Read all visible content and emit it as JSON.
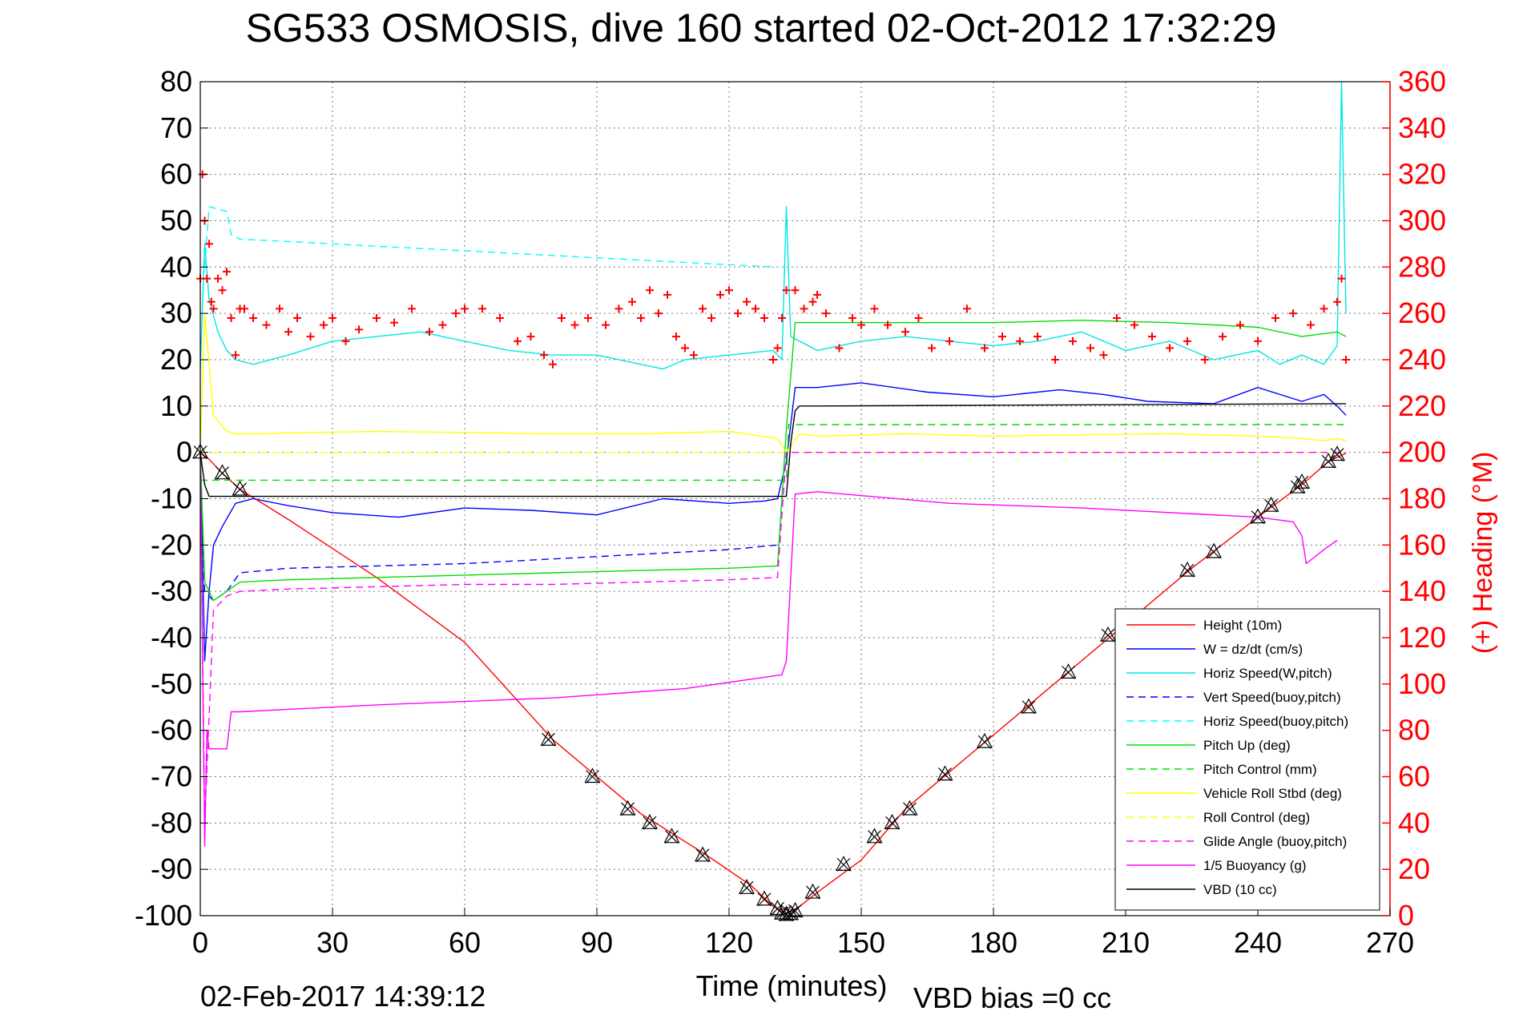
{
  "chart_data": {
    "type": "line",
    "title": "SG533 OSMOSIS, dive 160 started 02-Oct-2012 17:32:29",
    "xlabel": "Time (minutes)",
    "ylabel": "",
    "y2label": "(+) Heading (°M)",
    "footer_left": "02-Feb-2017 14:39:12",
    "footer_right": "VBD bias =0 cc",
    "xlim": [
      0,
      270
    ],
    "ylim": [
      -100,
      80
    ],
    "y2lim": [
      0,
      360
    ],
    "xticks": [
      0,
      30,
      60,
      90,
      120,
      150,
      180,
      210,
      240,
      270
    ],
    "yticks": [
      80,
      70,
      60,
      50,
      40,
      30,
      20,
      10,
      0,
      -10,
      -20,
      -30,
      -40,
      -50,
      -60,
      -70,
      -80,
      -90,
      -100
    ],
    "y2ticks": [
      360,
      340,
      320,
      300,
      280,
      260,
      240,
      220,
      200,
      180,
      160,
      140,
      120,
      100,
      80,
      60,
      40,
      20,
      0
    ],
    "grid": true,
    "legend_position": "bottom-right",
    "colors": {
      "height": "#ff0000",
      "w": "#0000ff",
      "horiz_speed": "#00e5e5",
      "vert_speed_buoy": "#0000ff",
      "horiz_speed_buoy": "#00ffff",
      "pitch_up": "#00dd00",
      "pitch_control": "#00dd00",
      "roll": "#ffff00",
      "roll_control": "#ffff00",
      "glide_angle": "#ff00ff",
      "buoyancy": "#ff00ff",
      "vbd": "#000000",
      "heading": "#ff0000",
      "right_axis": "#ff0000"
    },
    "legend": [
      {
        "label": "Height (10m)",
        "color": "#ff0000",
        "dash": "solid"
      },
      {
        "label": "W = dz/dt (cm/s)",
        "color": "#0000ff",
        "dash": "solid"
      },
      {
        "label": "Horiz Speed(W,pitch)",
        "color": "#00e5e5",
        "dash": "solid"
      },
      {
        "label": "Vert Speed(buoy,pitch)",
        "color": "#0000ff",
        "dash": "dashed"
      },
      {
        "label": "Horiz Speed(buoy,pitch)",
        "color": "#00ffff",
        "dash": "dashed"
      },
      {
        "label": "Pitch Up (deg)",
        "color": "#00dd00",
        "dash": "solid"
      },
      {
        "label": "Pitch Control (mm)",
        "color": "#00dd00",
        "dash": "dashed"
      },
      {
        "label": "Vehicle Roll Stbd (deg)",
        "color": "#ffff00",
        "dash": "solid"
      },
      {
        "label": "Roll Control (deg)",
        "color": "#ffff00",
        "dash": "dashed"
      },
      {
        "label": "Glide Angle (buoy,pitch)",
        "color": "#ff00ff",
        "dash": "dashed"
      },
      {
        "label": "1/5 Buoyancy (g)",
        "color": "#ff00ff",
        "dash": "solid"
      },
      {
        "label": "VBD (10 cc)",
        "color": "#000000",
        "dash": "solid"
      }
    ],
    "series": [
      {
        "key": "height",
        "axis": "left",
        "dash": "solid",
        "x": [
          0,
          2,
          5,
          9,
          20,
          40,
          60,
          80,
          90,
          100,
          115,
          125,
          130,
          133,
          136,
          140,
          150,
          160,
          170,
          180,
          190,
          200,
          210,
          225,
          240,
          250,
          256,
          260
        ],
        "y": [
          0,
          -1.5,
          -4.5,
          -8,
          -14.5,
          -27,
          -41,
          -62,
          -70,
          -78,
          -87,
          -93.5,
          -98,
          -99.7,
          -98,
          -95,
          -88,
          -77,
          -69,
          -61,
          -53,
          -45,
          -37,
          -25,
          -14,
          -7,
          -2,
          -0.2
        ]
      },
      {
        "key": "w",
        "axis": "left",
        "dash": "solid",
        "x": [
          0,
          1,
          2,
          3,
          5,
          8,
          12,
          20,
          30,
          45,
          60,
          75,
          90,
          105,
          120,
          128,
          131,
          133,
          135,
          140,
          150,
          165,
          180,
          195,
          205,
          215,
          230,
          240,
          250,
          255,
          258,
          260
        ],
        "y": [
          0,
          -45,
          -30,
          -20,
          -16,
          -11,
          -10,
          -11.5,
          -13,
          -14,
          -12,
          -12.5,
          -13.5,
          -10,
          -11,
          -10.5,
          -10,
          -2,
          14,
          14,
          15,
          13,
          12,
          13.5,
          12.5,
          11,
          10.5,
          14,
          11,
          12.5,
          10,
          8
        ]
      },
      {
        "key": "horiz_speed",
        "axis": "left",
        "dash": "solid",
        "x": [
          0,
          1,
          2,
          4,
          6,
          8,
          12,
          20,
          30,
          40,
          50,
          60,
          70,
          80,
          90,
          100,
          105,
          110,
          120,
          130,
          132,
          133,
          134,
          136,
          140,
          150,
          160,
          170,
          180,
          190,
          200,
          210,
          220,
          230,
          240,
          245,
          250,
          255,
          258,
          259,
          260
        ],
        "y": [
          18,
          45,
          33,
          26,
          22,
          20,
          19,
          21,
          24,
          25,
          26,
          24,
          22,
          21,
          21,
          19,
          18,
          20,
          21,
          22,
          20,
          53,
          25,
          24,
          22,
          24,
          25,
          24,
          23,
          24,
          26,
          22,
          24,
          20,
          22,
          19,
          21,
          19,
          23,
          80,
          30
        ]
      },
      {
        "key": "vert_speed_buoy",
        "axis": "left",
        "dash": "dashed",
        "x": [
          0,
          1,
          3,
          6,
          9,
          20,
          40,
          60,
          80,
          100,
          120,
          131
        ],
        "y": [
          0,
          -30,
          -32,
          -30,
          -26,
          -25,
          -24.5,
          -24,
          -23,
          -22,
          -21,
          -20
        ]
      },
      {
        "key": "horiz_speed_buoy",
        "axis": "left",
        "dash": "dashed",
        "x": [
          1,
          2,
          6,
          7,
          9,
          20,
          40,
          60,
          80,
          100,
          120,
          131
        ],
        "y": [
          40,
          53,
          52,
          47,
          46,
          45.5,
          44.5,
          43.5,
          42.5,
          41.5,
          40.5,
          40
        ]
      },
      {
        "key": "pitch_up",
        "axis": "left",
        "dash": "solid",
        "x": [
          0,
          1,
          3,
          6,
          9,
          20,
          40,
          60,
          80,
          100,
          120,
          131,
          133,
          135,
          140,
          160,
          180,
          200,
          220,
          240,
          250,
          258,
          260
        ],
        "y": [
          0,
          -28,
          -32,
          -30,
          -28,
          -27.5,
          -27,
          -26.5,
          -26,
          -25.5,
          -25,
          -24.5,
          5,
          28,
          28,
          28,
          28,
          28.5,
          28,
          27,
          25,
          26,
          25
        ]
      },
      {
        "key": "pitch_control",
        "axis": "left",
        "dash": "dashed",
        "x": [
          0,
          2,
          133,
          133.5,
          260
        ],
        "y": [
          -6,
          -6,
          -6,
          6,
          6
        ]
      },
      {
        "key": "roll",
        "axis": "left",
        "dash": "solid",
        "x": [
          0,
          1,
          3,
          6,
          8,
          12,
          20,
          40,
          60,
          80,
          100,
          120,
          131,
          133,
          136,
          140,
          160,
          180,
          200,
          220,
          240,
          250,
          255,
          258,
          260
        ],
        "y": [
          0,
          30,
          8,
          4.5,
          4,
          4,
          4.2,
          4.5,
          4.3,
          4,
          4,
          4.5,
          3,
          0,
          4,
          3.5,
          4,
          3.5,
          3.8,
          4,
          3.5,
          3,
          2.5,
          3,
          2.5
        ]
      },
      {
        "key": "roll_control",
        "axis": "left",
        "dash": "dashed",
        "x": [
          0,
          260
        ],
        "y": [
          0,
          0
        ]
      },
      {
        "key": "glide_angle",
        "axis": "left",
        "dash": "dashed",
        "x": [
          0,
          1,
          3,
          6,
          9,
          20,
          40,
          60,
          80,
          100,
          120,
          131,
          133,
          135,
          260
        ],
        "y": [
          0,
          -80,
          -34,
          -31,
          -30,
          -29.5,
          -29,
          -28.5,
          -28.5,
          -28,
          -27.5,
          -27,
          0,
          0,
          0
        ]
      },
      {
        "key": "buoyancy",
        "axis": "left",
        "dash": "solid",
        "x": [
          0,
          1,
          1.5,
          2,
          3,
          6,
          7,
          9,
          40,
          80,
          110,
          132,
          133,
          135,
          140,
          170,
          200,
          240,
          248,
          250,
          251,
          255,
          258
        ],
        "y": [
          0,
          -85,
          -60,
          -64,
          -64,
          -64,
          -56,
          -56,
          -54.5,
          -53,
          -51,
          -48,
          -45,
          -9,
          -8.5,
          -11,
          -12,
          -14,
          -15,
          -18,
          -24,
          -21,
          -19
        ]
      },
      {
        "key": "vbd",
        "axis": "left",
        "dash": "solid",
        "x": [
          0,
          1,
          2,
          133,
          134,
          135,
          136,
          140,
          260
        ],
        "y": [
          0,
          -7,
          -9.5,
          -9.5,
          2,
          9,
          10,
          10,
          10.5
        ]
      },
      {
        "key": "heading",
        "axis": "right",
        "dash": "markers",
        "x": [
          0,
          0.5,
          1,
          1.5,
          2,
          2.5,
          3,
          4,
          5,
          6,
          7,
          8,
          9,
          10,
          12,
          15,
          18,
          20,
          22,
          25,
          28,
          30,
          33,
          36,
          40,
          44,
          48,
          52,
          55,
          58,
          60,
          64,
          68,
          72,
          75,
          78,
          80,
          82,
          85,
          88,
          92,
          95,
          98,
          100,
          102,
          104,
          106,
          108,
          110,
          112,
          114,
          116,
          118,
          120,
          122,
          124,
          126,
          128,
          130,
          131,
          132,
          133,
          135,
          137,
          139,
          140,
          142,
          145,
          148,
          150,
          153,
          156,
          160,
          163,
          166,
          170,
          174,
          178,
          182,
          186,
          190,
          194,
          198,
          202,
          205,
          208,
          212,
          216,
          220,
          224,
          228,
          232,
          236,
          240,
          244,
          248,
          252,
          255,
          258,
          259,
          260
        ],
        "y": [
          275,
          320,
          300,
          275,
          290,
          265,
          262,
          275,
          270,
          278,
          258,
          242,
          262,
          262,
          258,
          255,
          262,
          252,
          258,
          250,
          255,
          258,
          248,
          253,
          258,
          256,
          262,
          252,
          255,
          260,
          262,
          262,
          258,
          248,
          250,
          242,
          238,
          258,
          255,
          258,
          255,
          262,
          265,
          258,
          270,
          260,
          268,
          250,
          245,
          242,
          262,
          258,
          268,
          270,
          260,
          265,
          262,
          258,
          240,
          245,
          258,
          270,
          270,
          262,
          265,
          268,
          260,
          245,
          258,
          255,
          262,
          255,
          252,
          258,
          245,
          248,
          262,
          245,
          250,
          248,
          250,
          240,
          248,
          245,
          242,
          258,
          255,
          250,
          245,
          248,
          240,
          250,
          255,
          248,
          258,
          260,
          255,
          262,
          265,
          275,
          240
        ]
      },
      {
        "key": "depth_markers",
        "axis": "left",
        "dash": "markers",
        "x": [
          0,
          5,
          9,
          79,
          89,
          97,
          102,
          107,
          114,
          124,
          128,
          131,
          132,
          133,
          134,
          135,
          139,
          146,
          153,
          157,
          161,
          169,
          178,
          188,
          197,
          206,
          224,
          230,
          240,
          243,
          249,
          250,
          256,
          258
        ],
        "y": [
          0,
          -4.5,
          -8,
          -62,
          -70,
          -77,
          -80,
          -83,
          -87,
          -94,
          -96.5,
          -98.5,
          -99.5,
          -99.8,
          -99.6,
          -99,
          -95,
          -89,
          -83,
          -80,
          -77,
          -69.5,
          -62.5,
          -55,
          -47.5,
          -39.5,
          -25.5,
          -21.5,
          -14,
          -11.5,
          -7.5,
          -6.5,
          -2,
          -0.5
        ]
      }
    ]
  }
}
